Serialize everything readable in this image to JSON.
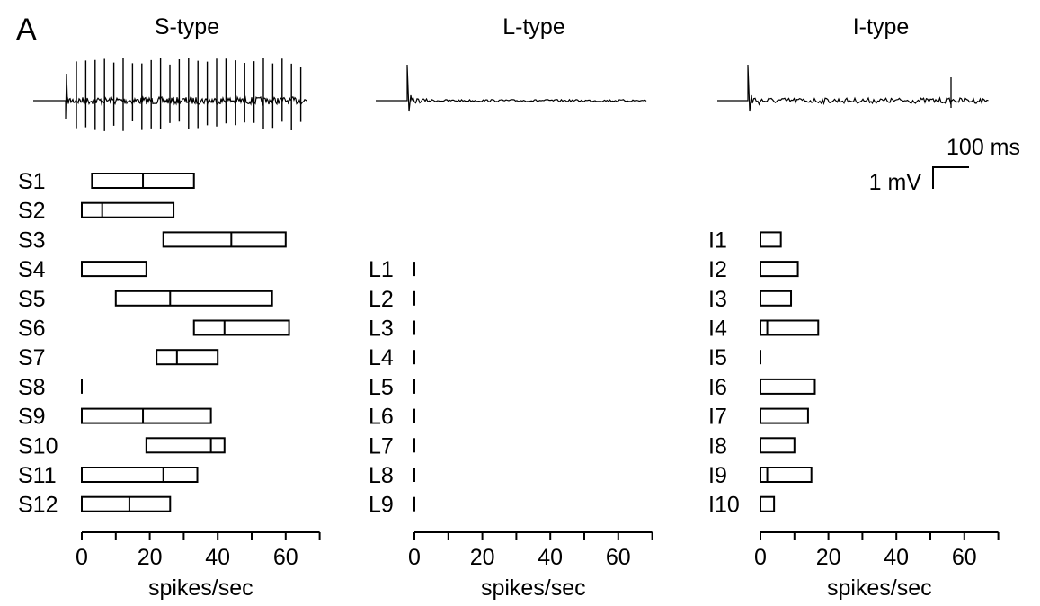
{
  "figure": {
    "panel_label": "A",
    "scale_bar": {
      "time": "100 ms",
      "voltage": "1 mV"
    }
  },
  "chart_data": [
    {
      "type": "box",
      "title": "S-type",
      "xlabel": "spikes/sec",
      "xlim": [
        0,
        70
      ],
      "xticks": [
        0,
        20,
        40,
        60
      ],
      "xminor": [
        10,
        30,
        50,
        70
      ],
      "units": [
        {
          "label": "S1",
          "low": 3,
          "median": 18,
          "high": 33
        },
        {
          "label": "S2",
          "low": 0,
          "median": 6,
          "high": 27
        },
        {
          "label": "S3",
          "low": 24,
          "median": 44,
          "high": 60
        },
        {
          "label": "S4",
          "low": 0,
          "median": 0,
          "high": 19
        },
        {
          "label": "S5",
          "low": 10,
          "median": 26,
          "high": 56
        },
        {
          "label": "S6",
          "low": 33,
          "median": 42,
          "high": 61
        },
        {
          "label": "S7",
          "low": 22,
          "median": 28,
          "high": 40
        },
        {
          "label": "S8",
          "low": 0,
          "median": 0,
          "high": 0
        },
        {
          "label": "S9",
          "low": 0,
          "median": 18,
          "high": 38
        },
        {
          "label": "S10",
          "low": 19,
          "median": 38,
          "high": 42
        },
        {
          "label": "S11",
          "low": 0,
          "median": 24,
          "high": 34
        },
        {
          "label": "S12",
          "low": 0,
          "median": 14,
          "high": 26
        }
      ],
      "trace": "sustained-spiking"
    },
    {
      "type": "box",
      "title": "L-type",
      "xlabel": "spikes/sec",
      "xlim": [
        0,
        70
      ],
      "xticks": [
        0,
        20,
        40,
        60
      ],
      "xminor": [
        10,
        30,
        50,
        70
      ],
      "units": [
        {
          "label": "L1",
          "low": 0,
          "median": 0,
          "high": 0
        },
        {
          "label": "L2",
          "low": 0,
          "median": 0,
          "high": 0
        },
        {
          "label": "L3",
          "low": 0,
          "median": 0,
          "high": 0
        },
        {
          "label": "L4",
          "low": 0,
          "median": 0,
          "high": 0
        },
        {
          "label": "L5",
          "low": 0,
          "median": 0,
          "high": 0
        },
        {
          "label": "L6",
          "low": 0,
          "median": 0,
          "high": 0
        },
        {
          "label": "L7",
          "low": 0,
          "median": 0,
          "high": 0
        },
        {
          "label": "L8",
          "low": 0,
          "median": 0,
          "high": 0
        },
        {
          "label": "L9",
          "low": 0,
          "median": 0,
          "high": 0
        }
      ],
      "trace": "onset-only"
    },
    {
      "type": "box",
      "title": "I-type",
      "xlabel": "spikes/sec",
      "xlim": [
        0,
        70
      ],
      "xticks": [
        0,
        20,
        40,
        60
      ],
      "xminor": [
        10,
        30,
        50,
        70
      ],
      "units": [
        {
          "label": "I1",
          "low": 0,
          "median": 0,
          "high": 6
        },
        {
          "label": "I2",
          "low": 0,
          "median": 0,
          "high": 11
        },
        {
          "label": "I3",
          "low": 0,
          "median": 0,
          "high": 9
        },
        {
          "label": "I4",
          "low": 0,
          "median": 2,
          "high": 17
        },
        {
          "label": "I5",
          "low": 0,
          "median": 0,
          "high": 0
        },
        {
          "label": "I6",
          "low": 0,
          "median": 0,
          "high": 16
        },
        {
          "label": "I7",
          "low": 0,
          "median": 0,
          "high": 14
        },
        {
          "label": "I8",
          "low": 0,
          "median": 0,
          "high": 10
        },
        {
          "label": "I9",
          "low": 0,
          "median": 2,
          "high": 15
        },
        {
          "label": "I10",
          "low": 0,
          "median": 0,
          "high": 4
        }
      ],
      "trace": "irregular-sparse"
    }
  ]
}
